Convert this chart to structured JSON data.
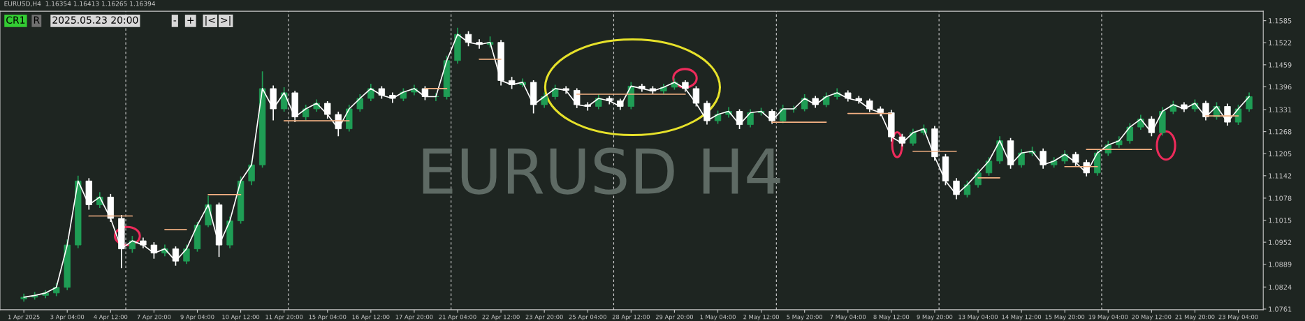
{
  "chart_data": {
    "type": "candlestick",
    "annotations": [
      "EURUSD H4",
      "EURUSD,H4  1.16354 1.16413 1.16265 1.16394",
      "CR1",
      "R",
      "2025.05.23 20:00",
      "-",
      "+",
      "|<",
      ">|"
    ],
    "categories": [
      "1 Apr 2025",
      null,
      null,
      null,
      "3 Apr 04:00",
      null,
      null,
      null,
      "4 Apr 12:00",
      null,
      null,
      null,
      "7 Apr 20:00",
      null,
      null,
      null,
      "9 Apr 04:00",
      null,
      null,
      null,
      "10 Apr 12:00",
      null,
      null,
      null,
      "11 Apr 20:00",
      null,
      null,
      null,
      "15 Apr 04:00",
      null,
      null,
      null,
      "16 Apr 12:00",
      null,
      null,
      null,
      "17 Apr 20:00",
      null,
      null,
      null,
      "21 Apr 04:00",
      null,
      null,
      null,
      "22 Apr 12:00",
      null,
      null,
      null,
      "23 Apr 20:00",
      null,
      null,
      null,
      "25 Apr 04:00",
      null,
      null,
      null,
      "28 Apr 12:00",
      null,
      null,
      null,
      "29 Apr 20:00",
      null,
      null,
      null,
      "1 May 04:00",
      null,
      null,
      null,
      "2 May 12:00",
      null,
      null,
      null,
      "5 May 20:00",
      null,
      null,
      null,
      "7 May 04:00",
      null,
      null,
      null,
      "8 May 12:00",
      null,
      null,
      null,
      "9 May 20:00",
      null,
      null,
      null,
      "13 May 04:00",
      null,
      null,
      null,
      "14 May 12:00",
      null,
      null,
      null,
      "15 May 20:00",
      null,
      null,
      null,
      "19 May 04:00",
      null,
      null,
      null,
      "20 May 12:00",
      null,
      null,
      null,
      "21 May 20:00",
      null,
      null,
      null,
      "23 May 04:00",
      null
    ],
    "ylim": [
      1.0759,
      1.1612
    ],
    "yticks": [
      1.0761,
      1.0824,
      1.0889,
      1.0952,
      1.1015,
      1.1078,
      1.1142,
      1.1205,
      1.1268,
      1.1331,
      1.1396,
      1.1459,
      1.1522,
      1.1585
    ],
    "grid": false,
    "series": [
      {
        "colors": [
          "#1f9d55",
          "#1f9d55",
          "#1f9d55",
          "#1f9d55",
          "#1f9d55",
          "#1f9d55",
          "#ffffff",
          "#1f9d55",
          "#ffffff",
          "#ffffff",
          "#1f9d55",
          "#ffffff",
          "#ffffff",
          "#1f9d55",
          "#ffffff",
          "#1f9d55",
          "#1f9d55",
          "#1f9d55",
          "#ffffff",
          "#1f9d55",
          "#1f9d55",
          "#1f9d55",
          "#1f9d55",
          "#ffffff",
          "#1f9d55",
          "#ffffff",
          "#1f9d55",
          "#1f9d55",
          "#ffffff",
          "#ffffff",
          "#1f9d55",
          "#1f9d55",
          "#1f9d55",
          "#ffffff",
          "#ffffff",
          "#1f9d55",
          "#1f9d55",
          "#ffffff",
          "#1f9d55",
          "#1f9d55",
          "#1f9d55",
          "#ffffff",
          "#ffffff",
          "#1f9d55",
          "#ffffff",
          "#ffffff",
          "#1f9d55",
          "#ffffff",
          "#1f9d55",
          "#1f9d55",
          "#ffffff",
          "#ffffff",
          "#ffffff",
          "#1f9d55",
          "#ffffff",
          "#ffffff",
          "#1f9d55",
          "#ffffff",
          "#ffffff",
          "#1f9d55",
          "#1f9d55",
          "#ffffff",
          "#ffffff",
          "#ffffff",
          "#1f9d55",
          "#1f9d55",
          "#ffffff",
          "#1f9d55",
          "#1f9d55",
          "#ffffff",
          "#1f9d55",
          "#1f9d55",
          "#1f9d55",
          "#ffffff",
          "#1f9d55",
          "#1f9d55",
          "#ffffff",
          "#ffffff",
          "#ffffff",
          "#ffffff",
          "#ffffff",
          "#ffffff",
          "#1f9d55",
          "#1f9d55",
          "#ffffff",
          "#ffffff",
          "#ffffff",
          "#1f9d55",
          "#1f9d55",
          "#1f9d55",
          "#1f9d55",
          "#ffffff",
          "#1f9d55",
          "#1f9d55",
          "#ffffff",
          "#1f9d55",
          "#1f9d55",
          "#ffffff",
          "#ffffff",
          "#1f9d55",
          "#1f9d55",
          "#1f9d55",
          "#1f9d55",
          "#1f9d55",
          "#ffffff",
          "#1f9d55",
          "#1f9d55",
          "#ffffff",
          "#1f9d55",
          "#ffffff",
          "#1f9d55",
          "#ffffff",
          "#1f9d55",
          "#1f9d55"
        ],
        "ohlc": [
          [
            1.079,
            1.0805,
            1.0782,
            1.0795
          ],
          [
            1.0795,
            1.081,
            1.0788,
            1.08
          ],
          [
            1.08,
            1.0815,
            1.0792,
            1.0807
          ],
          [
            1.0807,
            1.0835,
            1.0798,
            1.0823
          ],
          [
            1.0823,
            1.096,
            1.0815,
            1.0944
          ],
          [
            1.0944,
            1.1142,
            1.0935,
            1.1127
          ],
          [
            1.1127,
            1.1135,
            1.1045,
            1.1059
          ],
          [
            1.1059,
            1.1095,
            1.105,
            1.1081
          ],
          [
            1.1081,
            1.109,
            1.101,
            1.102
          ],
          [
            1.102,
            1.103,
            1.0878,
            1.0933
          ],
          [
            1.0933,
            1.097,
            1.0922,
            1.0956
          ],
          [
            1.0956,
            1.0965,
            1.0935,
            1.0944
          ],
          [
            1.0944,
            1.0952,
            1.0905,
            1.0921
          ],
          [
            1.0921,
            1.0945,
            1.0912,
            1.0933
          ],
          [
            1.0933,
            1.094,
            1.0885,
            1.0898
          ],
          [
            1.0898,
            1.0945,
            1.089,
            1.0933
          ],
          [
            1.0933,
            1.101,
            1.0925,
            1.1001
          ],
          [
            1.1001,
            1.1085,
            1.0995,
            1.1059
          ],
          [
            1.1059,
            1.1065,
            1.091,
            1.0944
          ],
          [
            1.0944,
            1.1025,
            1.0935,
            1.1013
          ],
          [
            1.1013,
            1.114,
            1.1005,
            1.1127
          ],
          [
            1.1127,
            1.1185,
            1.1115,
            1.1173
          ],
          [
            1.1173,
            1.144,
            1.1165,
            1.1391
          ],
          [
            1.1391,
            1.14,
            1.13,
            1.1333
          ],
          [
            1.1333,
            1.1395,
            1.1325,
            1.1379
          ],
          [
            1.1379,
            1.1385,
            1.1295,
            1.131
          ],
          [
            1.131,
            1.1345,
            1.13,
            1.1333
          ],
          [
            1.1333,
            1.136,
            1.1325,
            1.1349
          ],
          [
            1.1349,
            1.1355,
            1.1305,
            1.1317
          ],
          [
            1.1317,
            1.1325,
            1.1255,
            1.1276
          ],
          [
            1.1276,
            1.1345,
            1.1268,
            1.1333
          ],
          [
            1.1333,
            1.1375,
            1.1325,
            1.1363
          ],
          [
            1.1363,
            1.1405,
            1.1355,
            1.1391
          ],
          [
            1.1391,
            1.1398,
            1.1362,
            1.1372
          ],
          [
            1.1372,
            1.138,
            1.135,
            1.1363
          ],
          [
            1.1363,
            1.1392,
            1.1355,
            1.1381
          ],
          [
            1.1381,
            1.1402,
            1.1372,
            1.1391
          ],
          [
            1.1391,
            1.1398,
            1.1358,
            1.1368
          ],
          [
            1.1368,
            1.1378,
            1.1355,
            1.1368
          ],
          [
            1.1368,
            1.1485,
            1.136,
            1.1471
          ],
          [
            1.1471,
            1.1565,
            1.1462,
            1.1546
          ],
          [
            1.1546,
            1.1555,
            1.1512,
            1.1523
          ],
          [
            1.1523,
            1.1532,
            1.1505,
            1.1517
          ],
          [
            1.1517,
            1.154,
            1.1508,
            1.1523
          ],
          [
            1.1523,
            1.153,
            1.14,
            1.1414
          ],
          [
            1.1414,
            1.1425,
            1.139,
            1.1402
          ],
          [
            1.1402,
            1.142,
            1.1395,
            1.1409
          ],
          [
            1.1409,
            1.1415,
            1.132,
            1.1345
          ],
          [
            1.1345,
            1.138,
            1.1336,
            1.1368
          ],
          [
            1.1368,
            1.1402,
            1.136,
            1.1391
          ],
          [
            1.1391,
            1.1398,
            1.1376,
            1.1386
          ],
          [
            1.1386,
            1.1392,
            1.1335,
            1.1345
          ],
          [
            1.1345,
            1.1352,
            1.1328,
            1.134
          ],
          [
            1.134,
            1.1375,
            1.1332,
            1.1363
          ],
          [
            1.1363,
            1.137,
            1.1346,
            1.1356
          ],
          [
            1.1356,
            1.1362,
            1.133,
            1.134
          ],
          [
            1.134,
            1.141,
            1.1332,
            1.1398
          ],
          [
            1.1398,
            1.1405,
            1.1382,
            1.1391
          ],
          [
            1.1391,
            1.1398,
            1.1375,
            1.1384
          ],
          [
            1.1384,
            1.1405,
            1.1376,
            1.1395
          ],
          [
            1.1395,
            1.142,
            1.1388,
            1.1409
          ],
          [
            1.1409,
            1.1415,
            1.1382,
            1.1391
          ],
          [
            1.1391,
            1.1398,
            1.134,
            1.1349
          ],
          [
            1.1349,
            1.1356,
            1.1288,
            1.1299
          ],
          [
            1.1299,
            1.1328,
            1.129,
            1.1317
          ],
          [
            1.1317,
            1.1338,
            1.1308,
            1.1326
          ],
          [
            1.1326,
            1.1332,
            1.1275,
            1.1288
          ],
          [
            1.1288,
            1.1332,
            1.128,
            1.1322
          ],
          [
            1.1322,
            1.1336,
            1.1314,
            1.1326
          ],
          [
            1.1326,
            1.1332,
            1.129,
            1.1299
          ],
          [
            1.1299,
            1.1345,
            1.1292,
            1.1333
          ],
          [
            1.1333,
            1.1342,
            1.1322,
            1.1333
          ],
          [
            1.1333,
            1.1375,
            1.1326,
            1.1363
          ],
          [
            1.1363,
            1.137,
            1.1336,
            1.1345
          ],
          [
            1.1345,
            1.138,
            1.1338,
            1.1368
          ],
          [
            1.1368,
            1.1392,
            1.136,
            1.1379
          ],
          [
            1.1379,
            1.1386,
            1.1354,
            1.1363
          ],
          [
            1.1363,
            1.137,
            1.1348,
            1.1356
          ],
          [
            1.1356,
            1.1362,
            1.1324,
            1.1333
          ],
          [
            1.1333,
            1.134,
            1.1312,
            1.1322
          ],
          [
            1.1322,
            1.133,
            1.124,
            1.1253
          ],
          [
            1.1253,
            1.1262,
            1.1226,
            1.1235
          ],
          [
            1.1235,
            1.1276,
            1.1228,
            1.1265
          ],
          [
            1.1265,
            1.1288,
            1.1258,
            1.1276
          ],
          [
            1.1276,
            1.1284,
            1.1185,
            1.1196
          ],
          [
            1.1196,
            1.1204,
            1.1115,
            1.1127
          ],
          [
            1.1127,
            1.1135,
            1.1075,
            1.1088
          ],
          [
            1.1088,
            1.1128,
            1.108,
            1.1116
          ],
          [
            1.1116,
            1.1162,
            1.1108,
            1.115
          ],
          [
            1.115,
            1.1195,
            1.1142,
            1.1184
          ],
          [
            1.1184,
            1.1255,
            1.1176,
            1.1242
          ],
          [
            1.1242,
            1.125,
            1.1162,
            1.1173
          ],
          [
            1.1173,
            1.1218,
            1.1165,
            1.1207
          ],
          [
            1.1207,
            1.1225,
            1.1198,
            1.1212
          ],
          [
            1.1212,
            1.122,
            1.1162,
            1.1173
          ],
          [
            1.1173,
            1.1195,
            1.1165,
            1.1184
          ],
          [
            1.1184,
            1.1215,
            1.1176,
            1.1203
          ],
          [
            1.1203,
            1.121,
            1.117,
            1.118
          ],
          [
            1.118,
            1.1188,
            1.114,
            1.115
          ],
          [
            1.115,
            1.1218,
            1.1142,
            1.1207
          ],
          [
            1.1207,
            1.1242,
            1.1199,
            1.123
          ],
          [
            1.123,
            1.1255,
            1.1222,
            1.1242
          ],
          [
            1.1242,
            1.1292,
            1.1234,
            1.1281
          ],
          [
            1.1281,
            1.1316,
            1.1273,
            1.1304
          ],
          [
            1.1304,
            1.1312,
            1.1255,
            1.1265
          ],
          [
            1.1265,
            1.1338,
            1.1257,
            1.1326
          ],
          [
            1.1326,
            1.1356,
            1.1318,
            1.1345
          ],
          [
            1.1345,
            1.1352,
            1.1324,
            1.1333
          ],
          [
            1.1333,
            1.136,
            1.1325,
            1.1349
          ],
          [
            1.1349,
            1.1356,
            1.13,
            1.131
          ],
          [
            1.131,
            1.1352,
            1.1302,
            1.134
          ],
          [
            1.134,
            1.1348,
            1.1285,
            1.1295
          ],
          [
            1.1295,
            1.1345,
            1.1287,
            1.1333
          ],
          [
            1.1333,
            1.138,
            1.1325,
            1.1368
          ]
        ]
      },
      {
        "type": "line",
        "color": "#ffffff",
        "values": [
          1.0795,
          1.08,
          1.0807,
          1.0823,
          1.0944,
          1.1127,
          1.1059,
          1.1081,
          1.102,
          1.0933,
          1.0956,
          1.0944,
          1.0921,
          1.0933,
          1.0898,
          1.0933,
          1.1001,
          1.1059,
          1.0944,
          1.1013,
          1.1127,
          1.1173,
          1.1391,
          1.1333,
          1.1379,
          1.131,
          1.1333,
          1.1349,
          1.1317,
          1.1276,
          1.1333,
          1.1363,
          1.1391,
          1.1372,
          1.1363,
          1.1381,
          1.1391,
          1.1368,
          1.1368,
          1.1471,
          1.1546,
          1.1523,
          1.1517,
          1.1523,
          1.1414,
          1.1402,
          1.1409,
          1.1345,
          1.1368,
          1.1391,
          1.1386,
          1.1345,
          1.134,
          1.1363,
          1.1356,
          1.134,
          1.1398,
          1.1391,
          1.1384,
          1.1395,
          1.1409,
          1.1391,
          1.1349,
          1.1299,
          1.1317,
          1.1326,
          1.1288,
          1.1322,
          1.1326,
          1.1299,
          1.1333,
          1.1333,
          1.1363,
          1.1345,
          1.1368,
          1.1379,
          1.1363,
          1.1356,
          1.1333,
          1.1322,
          1.1253,
          1.1235,
          1.1265,
          1.1276,
          1.1196,
          1.1127,
          1.1088,
          1.1116,
          1.115,
          1.1184,
          1.1242,
          1.1173,
          1.1207,
          1.1212,
          1.1173,
          1.1184,
          1.1203,
          1.118,
          1.115,
          1.1207,
          1.123,
          1.1242,
          1.1281,
          1.1304,
          1.1265,
          1.1326,
          1.1345,
          1.1333,
          1.1349,
          1.131,
          1.134,
          1.1295,
          1.1333,
          1.1368
        ]
      },
      {
        "type": "line",
        "color": "#f4b183",
        "values": [
          null,
          null,
          null,
          null,
          null,
          null,
          1.1027,
          1.1027,
          1.1027,
          1.1027,
          1.1027,
          null,
          null,
          1.0988,
          1.0988,
          1.0988,
          null,
          1.1088,
          1.1088,
          1.1088,
          1.1088,
          null,
          null,
          null,
          1.1299,
          1.1299,
          1.1299,
          1.1299,
          1.1299,
          1.1299,
          1.1299,
          null,
          null,
          null,
          null,
          null,
          null,
          1.1391,
          1.1391,
          1.1391,
          null,
          null,
          1.1475,
          1.1475,
          1.1475,
          null,
          null,
          null,
          null,
          null,
          null,
          1.1375,
          1.1375,
          1.1375,
          1.1375,
          1.1375,
          1.1375,
          1.1375,
          1.1375,
          1.1375,
          1.1375,
          1.1375,
          null,
          null,
          null,
          null,
          null,
          null,
          null,
          1.1295,
          1.1295,
          1.1295,
          1.1295,
          1.1295,
          1.1295,
          null,
          1.132,
          1.132,
          1.132,
          1.132,
          1.132,
          null,
          1.1212,
          1.1212,
          1.1212,
          1.1212,
          1.1212,
          null,
          1.1136,
          1.1136,
          1.1136,
          null,
          null,
          null,
          null,
          null,
          1.1168,
          1.1168,
          1.1168,
          1.1168,
          null,
          null,
          null,
          null,
          null,
          null,
          null,
          null,
          null,
          1.1313,
          1.1313,
          1.1313,
          1.1313,
          null
        ]
      },
      {
        "type": "line",
        "color": "#f4b183",
        "values": [
          null,
          null,
          null,
          null,
          null,
          null,
          null,
          null,
          null,
          null,
          null,
          null,
          null,
          null,
          null,
          null,
          null,
          null,
          null,
          null,
          null,
          null,
          null,
          null,
          null,
          null,
          null,
          null,
          null,
          null,
          null,
          null,
          null,
          null,
          null,
          null,
          null,
          null,
          null,
          null,
          null,
          null,
          null,
          null,
          null,
          null,
          null,
          null,
          null,
          null,
          null,
          null,
          null,
          null,
          null,
          null,
          null,
          null,
          null,
          null,
          null,
          null,
          null,
          null,
          null,
          null,
          null,
          null,
          null,
          null,
          null,
          null,
          null,
          null,
          null,
          null,
          null,
          null,
          null,
          null,
          null,
          null,
          null,
          null,
          null,
          null,
          null,
          null,
          null,
          null,
          null,
          null,
          null,
          null,
          null,
          null,
          null,
          null,
          1.1217,
          1.1217,
          1.1217,
          1.1217,
          1.1217,
          1.1217,
          1.1217,
          null,
          null,
          null,
          null,
          null,
          null,
          null,
          null,
          null
        ]
      }
    ]
  }
}
